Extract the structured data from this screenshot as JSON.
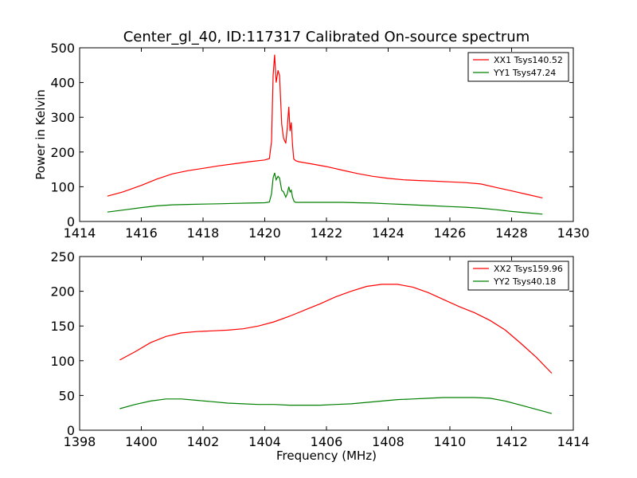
{
  "title": "Center_gl_40, ID:117317 Calibrated On-source spectrum",
  "chart_data": [
    {
      "type": "line",
      "title": "Center_gl_40, ID:117317 Calibrated On-source spectrum",
      "xlabel": "",
      "ylabel": "Power in Kelvin",
      "xlim": [
        1414,
        1430
      ],
      "ylim": [
        0,
        500
      ],
      "xticks": [
        1414,
        1416,
        1418,
        1420,
        1422,
        1424,
        1426,
        1428,
        1430
      ],
      "yticks": [
        0,
        100,
        200,
        300,
        400,
        500
      ],
      "legend": "top-right",
      "series": [
        {
          "name": "XX1 Tsys140.52",
          "color": "#ff0000",
          "x": [
            1414.9,
            1415.4,
            1416.0,
            1416.5,
            1417.0,
            1417.5,
            1418.0,
            1418.5,
            1419.0,
            1419.5,
            1420.0,
            1420.15,
            1420.22,
            1420.27,
            1420.32,
            1420.37,
            1420.43,
            1420.48,
            1420.55,
            1420.61,
            1420.68,
            1420.73,
            1420.78,
            1420.82,
            1420.86,
            1420.9,
            1420.94,
            1421.0,
            1421.1,
            1421.5,
            1422.0,
            1422.5,
            1423.0,
            1423.5,
            1424.0,
            1424.5,
            1425.0,
            1425.5,
            1426.0,
            1426.5,
            1427.0,
            1427.5,
            1428.0,
            1428.5,
            1429.0
          ],
          "y": [
            73,
            85,
            104,
            122,
            137,
            146,
            153,
            160,
            166,
            172,
            177,
            181,
            230,
            420,
            480,
            400,
            435,
            420,
            280,
            240,
            225,
            270,
            330,
            260,
            285,
            220,
            180,
            175,
            172,
            166,
            158,
            148,
            138,
            130,
            124,
            120,
            118,
            116,
            114,
            112,
            108,
            98,
            88,
            78,
            68
          ]
        },
        {
          "name": "YY1 Tsys47.24",
          "color": "#008000",
          "x": [
            1414.9,
            1415.5,
            1416.0,
            1416.5,
            1417.0,
            1417.5,
            1418.0,
            1418.5,
            1419.0,
            1419.5,
            1420.0,
            1420.15,
            1420.22,
            1420.27,
            1420.32,
            1420.37,
            1420.43,
            1420.48,
            1420.55,
            1420.61,
            1420.68,
            1420.73,
            1420.78,
            1420.82,
            1420.86,
            1420.9,
            1420.95,
            1421.0,
            1421.5,
            1422.0,
            1422.5,
            1423.0,
            1423.5,
            1424.0,
            1424.5,
            1425.0,
            1425.5,
            1426.0,
            1426.5,
            1427.0,
            1427.5,
            1428.0,
            1428.5,
            1429.0
          ],
          "y": [
            27,
            34,
            40,
            45,
            48,
            49,
            50,
            51,
            52,
            53,
            54,
            56,
            80,
            125,
            140,
            120,
            130,
            125,
            90,
            85,
            70,
            80,
            100,
            85,
            90,
            70,
            58,
            55,
            55,
            55,
            55,
            54,
            53,
            51,
            49,
            47,
            45,
            43,
            41,
            38,
            34,
            29,
            25,
            21
          ]
        }
      ]
    },
    {
      "type": "line",
      "title": "",
      "xlabel": "Frequency (MHz)",
      "ylabel": "",
      "xlim": [
        1398,
        1414
      ],
      "ylim": [
        0,
        250
      ],
      "xticks": [
        1398,
        1400,
        1402,
        1404,
        1406,
        1408,
        1410,
        1412,
        1414
      ],
      "yticks": [
        0,
        50,
        100,
        150,
        200,
        250
      ],
      "legend": "top-right",
      "series": [
        {
          "name": "XX2 Tsys159.96",
          "color": "#ff0000",
          "x": [
            1399.3,
            1399.8,
            1400.3,
            1400.8,
            1401.3,
            1401.8,
            1402.3,
            1402.8,
            1403.3,
            1403.8,
            1404.3,
            1404.8,
            1405.3,
            1405.8,
            1406.3,
            1406.8,
            1407.3,
            1407.8,
            1408.3,
            1408.8,
            1409.3,
            1409.8,
            1410.3,
            1410.8,
            1411.3,
            1411.8,
            1412.3,
            1412.8,
            1413.3
          ],
          "y": [
            101,
            113,
            126,
            135,
            140,
            142,
            143,
            144,
            146,
            150,
            156,
            164,
            173,
            182,
            192,
            200,
            207,
            210,
            210,
            206,
            198,
            188,
            178,
            169,
            158,
            144,
            125,
            105,
            82
          ]
        },
        {
          "name": "YY2 Tsys40.18",
          "color": "#008000",
          "x": [
            1399.3,
            1399.8,
            1400.3,
            1400.8,
            1401.3,
            1401.8,
            1402.3,
            1402.8,
            1403.3,
            1403.8,
            1404.3,
            1404.8,
            1405.3,
            1405.8,
            1406.3,
            1406.8,
            1407.3,
            1407.8,
            1408.3,
            1408.8,
            1409.3,
            1409.8,
            1410.3,
            1410.8,
            1411.3,
            1411.8,
            1412.3,
            1412.8,
            1413.3
          ],
          "y": [
            31,
            37,
            42,
            45,
            45,
            43,
            41,
            39,
            38,
            37,
            37,
            36,
            36,
            36,
            37,
            38,
            40,
            42,
            44,
            45,
            46,
            47,
            47,
            47,
            46,
            42,
            36,
            30,
            24
          ]
        }
      ]
    }
  ]
}
